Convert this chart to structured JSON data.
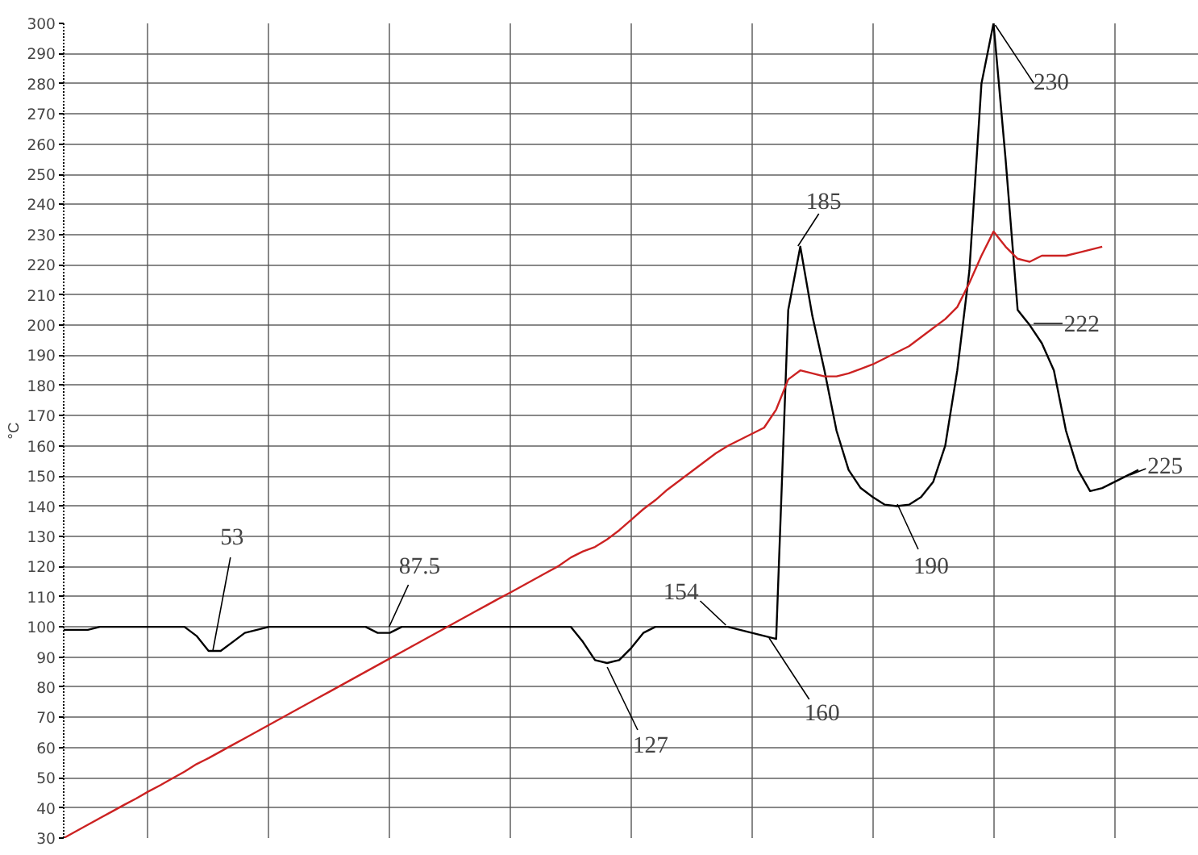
{
  "chart_data": {
    "type": "line",
    "ylabel": "°C",
    "categories": [
      null,
      null,
      null,
      null,
      null,
      null,
      null,
      null,
      null,
      null,
      null,
      null,
      null,
      null,
      null,
      null,
      null,
      null,
      null,
      null,
      null,
      null,
      null,
      null,
      null,
      null,
      null,
      null,
      null,
      null,
      null,
      null,
      null,
      null,
      null,
      null,
      null,
      null,
      null,
      null,
      null,
      null,
      null,
      null,
      null,
      null,
      null,
      null,
      null,
      null,
      null,
      null,
      null,
      null,
      null,
      null,
      null,
      null,
      null,
      null,
      null,
      null,
      null,
      null,
      null,
      null,
      null,
      null,
      null,
      null,
      null,
      null,
      null,
      null,
      null,
      null,
      null,
      null,
      null,
      null,
      null,
      null,
      null,
      null,
      null,
      null,
      null,
      null,
      null,
      null,
      null,
      null,
      null,
      null,
      null
    ],
    "series": [
      {
        "color": "#000000",
        "values": [
          99,
          99,
          99,
          100,
          100,
          100,
          100,
          100,
          100,
          100,
          100,
          97,
          92,
          92,
          95,
          98,
          99,
          100,
          100,
          100,
          100,
          100,
          100,
          100,
          100,
          100,
          98,
          98,
          100,
          100,
          100,
          100,
          100,
          100,
          100,
          100,
          100,
          100,
          100,
          100,
          100,
          100,
          100,
          95,
          89,
          88,
          89,
          93,
          98,
          100,
          100,
          100,
          100,
          100,
          100,
          100,
          99,
          98,
          97,
          96,
          205,
          226,
          203,
          185,
          165,
          152,
          146,
          143,
          140.5,
          140,
          140.5,
          143,
          148,
          160,
          185,
          218,
          280,
          300,
          255,
          205,
          200,
          194,
          185,
          165,
          152,
          145,
          146,
          148,
          150,
          152,
          null,
          null,
          null,
          null,
          null
        ]
      },
      {
        "color": "#cc2222",
        "values": [
          30,
          32.2,
          34.4,
          36.6,
          38.8,
          41,
          43.1,
          45.4,
          47.5,
          49.8,
          52,
          54.5,
          56.5,
          58.7,
          60.9,
          63.1,
          65.3,
          67.5,
          69.7,
          71.9,
          74.1,
          76.3,
          78.5,
          80.7,
          82.9,
          85.1,
          87.3,
          89.5,
          91.7,
          93.9,
          96.1,
          98.3,
          100.5,
          102.7,
          104.9,
          107.1,
          109.3,
          111.4,
          113.6,
          115.8,
          118,
          120.2,
          123,
          125,
          126.5,
          129,
          132,
          135.5,
          139,
          142,
          145.5,
          148.5,
          151.5,
          154.5,
          157.5,
          160,
          162,
          164,
          166,
          172,
          182,
          185,
          184,
          183,
          183,
          184,
          185.5,
          187,
          189,
          191,
          193,
          196,
          199,
          202,
          206,
          214,
          223,
          231,
          226,
          222,
          221,
          223,
          223,
          223,
          224,
          225,
          226,
          null,
          null,
          null,
          null,
          null,
          null,
          null,
          null
        ]
      }
    ],
    "ylim": [
      30,
      300
    ],
    "yticks": [
      30,
      40,
      50,
      60,
      70,
      80,
      90,
      100,
      110,
      120,
      130,
      140,
      150,
      160,
      170,
      180,
      190,
      200,
      210,
      220,
      230,
      240,
      250,
      260,
      270,
      280,
      290,
      300
    ],
    "grid": true,
    "tick_labels": "y",
    "marker": "none",
    "line_style": "solid",
    "annotations": [
      "53",
      "87.5",
      "154",
      "127",
      "160",
      "185",
      "190",
      "230",
      "222",
      "225"
    ]
  }
}
